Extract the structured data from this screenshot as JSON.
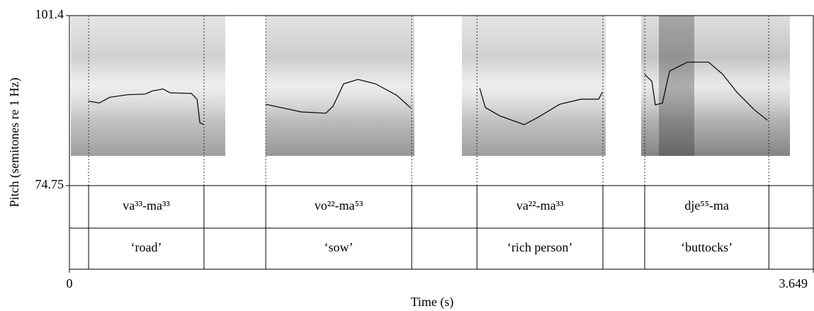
{
  "chart_data": {
    "type": "line",
    "y_label": "Pitch (semitones re 1 Hz)",
    "x_label": "Time (s)",
    "xlim": [
      0,
      3.649
    ],
    "xticks": [
      0,
      3.649
    ],
    "ylim": [
      74.75,
      101.4
    ],
    "yticks": [
      101.4,
      74.75
    ],
    "series": [
      {
        "color": "#000000",
        "x": [
          0.094,
          0.146,
          0.198,
          0.285,
          0.372,
          0.407,
          0.459,
          0.494,
          0.598,
          0.626,
          0.64,
          0.66,
          null,
          0.963,
          1.05,
          1.137,
          1.258,
          1.293,
          1.345,
          1.415,
          1.502,
          1.606,
          1.675,
          null,
          2.013,
          2.04,
          2.11,
          2.231,
          2.301,
          2.405,
          2.51,
          2.596,
          2.614,
          null,
          2.822,
          2.857,
          2.874,
          2.909,
          2.944,
          3.031,
          3.135,
          3.205,
          3.274,
          3.361,
          3.424
        ],
        "values": [
          88.0,
          87.7,
          88.6,
          89.0,
          89.1,
          89.6,
          89.9,
          89.3,
          89.2,
          88.3,
          84.6,
          84.3,
          null,
          87.5,
          86.9,
          86.3,
          86.1,
          87.2,
          90.7,
          91.4,
          90.7,
          88.9,
          86.9,
          null,
          90.0,
          87.0,
          85.7,
          84.3,
          85.5,
          87.5,
          88.3,
          88.3,
          89.4,
          null,
          92.2,
          91.1,
          87.4,
          87.7,
          92.7,
          94.1,
          94.1,
          92.2,
          89.4,
          86.6,
          85.0
        ]
      }
    ],
    "tiers": [
      {
        "intervals": [
          {
            "xmin": 0.094,
            "xmax": 0.66,
            "text": "va³³-ma³³"
          },
          {
            "xmin": 0.963,
            "xmax": 1.679,
            "text": "vo²²-ma⁵³"
          },
          {
            "xmin": 1.999,
            "xmax": 2.617,
            "text": "va²²-ma³³"
          },
          {
            "xmin": 2.822,
            "xmax": 3.431,
            "text": "dje⁵⁵-ma"
          }
        ]
      },
      {
        "intervals": [
          {
            "xmin": 0.094,
            "xmax": 0.66,
            "text": "‘road’"
          },
          {
            "xmin": 0.963,
            "xmax": 1.679,
            "text": "‘sow’"
          },
          {
            "xmin": 1.999,
            "xmax": 2.617,
            "text": "‘rich person’"
          },
          {
            "xmin": 2.822,
            "xmax": 3.431,
            "text": "‘buttocks’"
          }
        ]
      }
    ]
  }
}
